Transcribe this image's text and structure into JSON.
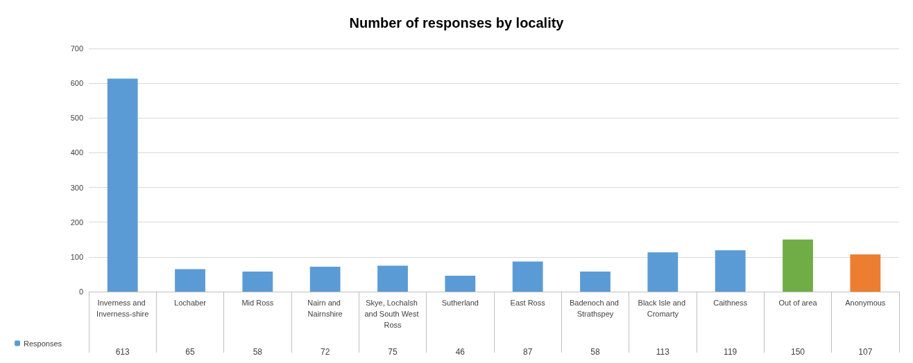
{
  "chart_data": {
    "type": "bar",
    "title": "Number of responses by locality",
    "categories": [
      "Inverness and Inverness-shire",
      "Lochaber",
      "Mid Ross",
      "Nairn and Nairnshire",
      "Skye, Lochalsh and South West Ross",
      "Sutherland",
      "East Ross",
      "Badenoch and Strathspey",
      "Black Isle and Cromarty",
      "Caithness",
      "Out of area",
      "Anonymous"
    ],
    "series": [
      {
        "name": "Responses",
        "color": "#5b9bd5",
        "values": [
          613,
          65,
          58,
          72,
          75,
          46,
          87,
          58,
          113,
          119,
          150,
          107
        ],
        "colors": [
          "#5b9bd5",
          "#5b9bd5",
          "#5b9bd5",
          "#5b9bd5",
          "#5b9bd5",
          "#5b9bd5",
          "#5b9bd5",
          "#5b9bd5",
          "#5b9bd5",
          "#5b9bd5",
          "#70ad47",
          "#ed7d31"
        ]
      }
    ],
    "ylim": [
      0,
      700
    ],
    "yticks": [
      0,
      100,
      200,
      300,
      400,
      500,
      600,
      700
    ],
    "grid": "y",
    "legend": "bottom left",
    "data_labels": true
  }
}
